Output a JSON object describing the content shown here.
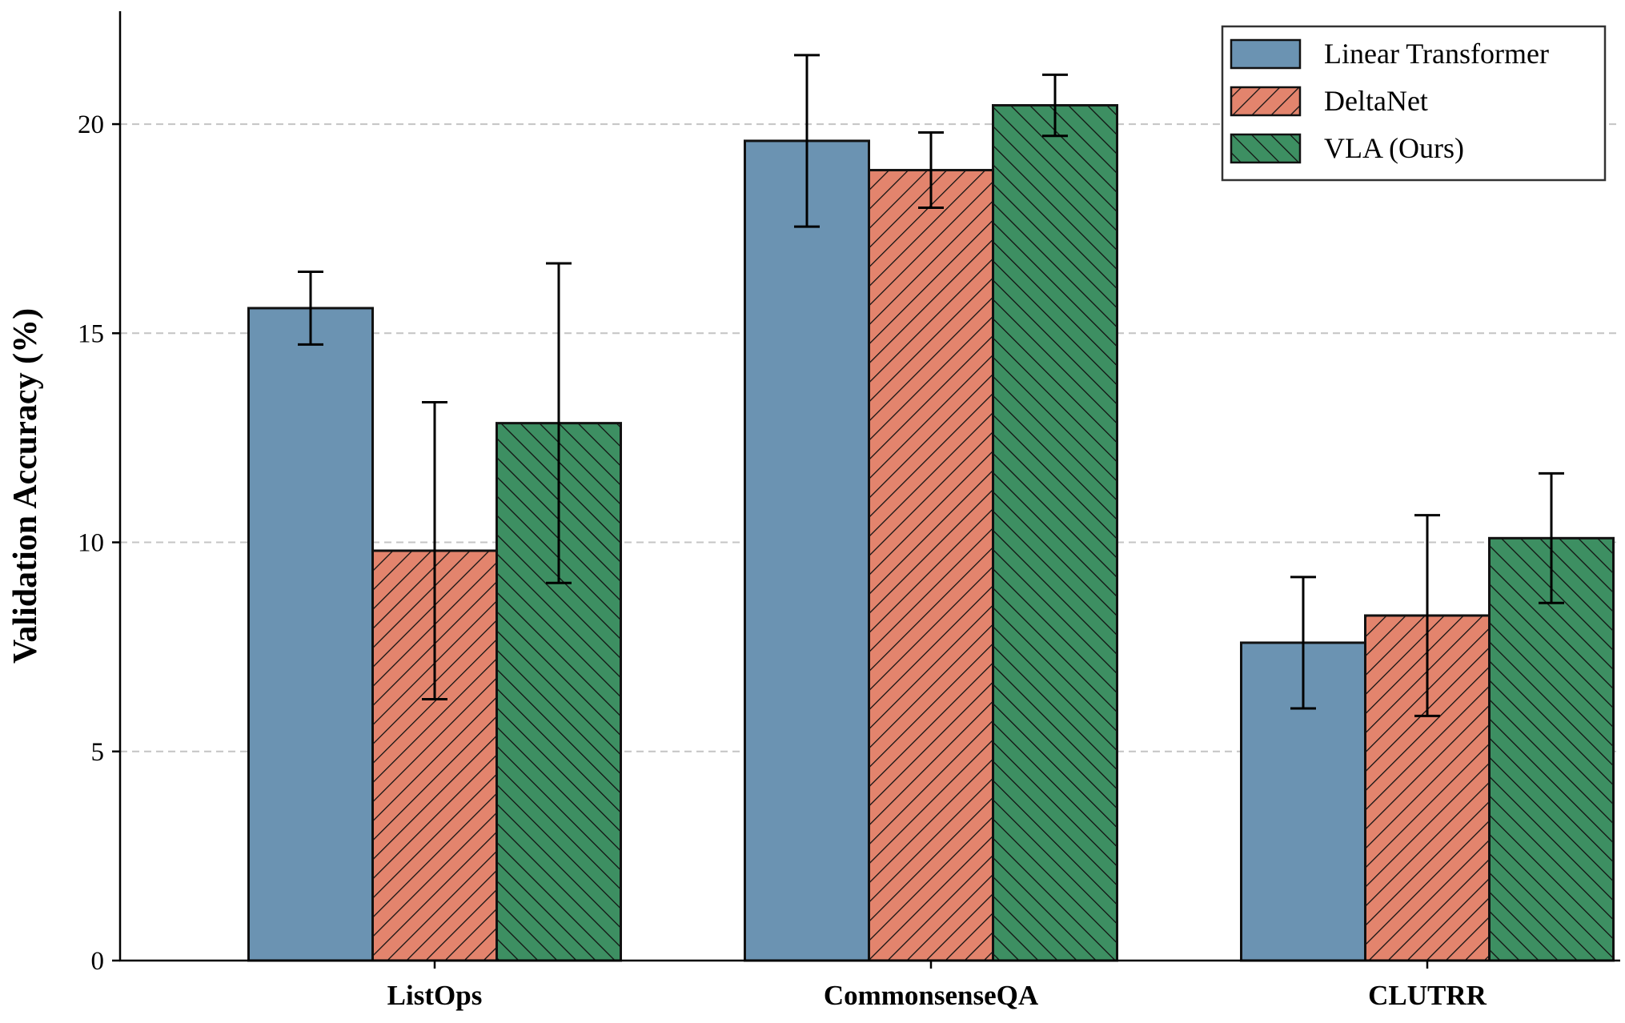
{
  "chart_data": {
    "type": "bar",
    "title": "",
    "xlabel": "",
    "ylabel": "Validation Accuracy (%)",
    "categories": [
      "ListOps",
      "CommonsenseQA",
      "CLUTRR"
    ],
    "ylim": [
      0,
      22.7
    ],
    "yticks": [
      0,
      5,
      10,
      15,
      20
    ],
    "grid": "y-dashed",
    "legend_position": "top-right",
    "series": [
      {
        "name": "Linear Transformer",
        "color": "#6b93b2",
        "hatch": "none",
        "values": [
          15.6,
          19.6,
          7.6
        ],
        "errors": [
          0.87,
          2.05,
          1.57
        ]
      },
      {
        "name": "DeltaNet",
        "color": "#e3846d",
        "hatch": "forward",
        "values": [
          9.8,
          18.9,
          8.25
        ],
        "errors": [
          3.55,
          0.9,
          2.4
        ]
      },
      {
        "name": "VLA (Ours)",
        "color": "#3d8f62",
        "hatch": "backward",
        "values": [
          12.85,
          20.45,
          10.1
        ],
        "errors": [
          3.82,
          0.73,
          1.55
        ]
      }
    ]
  }
}
